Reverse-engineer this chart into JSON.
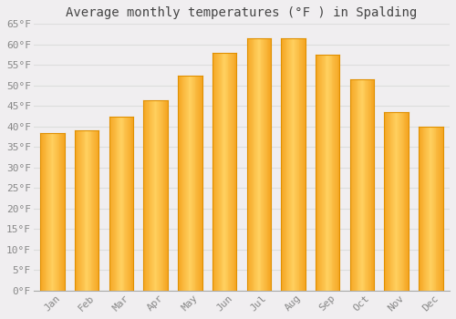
{
  "title": "Average monthly temperatures (°F ) in Spalding",
  "months": [
    "Jan",
    "Feb",
    "Mar",
    "Apr",
    "May",
    "Jun",
    "Jul",
    "Aug",
    "Sep",
    "Oct",
    "Nov",
    "Dec"
  ],
  "values": [
    38.5,
    39.0,
    42.5,
    46.5,
    52.5,
    58.0,
    61.5,
    61.5,
    57.5,
    51.5,
    43.5,
    40.0
  ],
  "bar_color_left": "#F5A623",
  "bar_color_center": "#FFD060",
  "bar_color_right": "#F5A623",
  "background_color": "#F0EEF0",
  "plot_bg_color": "#F0EEF0",
  "grid_color": "#DDDDDD",
  "ylim": [
    0,
    65
  ],
  "yticks": [
    0,
    5,
    10,
    15,
    20,
    25,
    30,
    35,
    40,
    45,
    50,
    55,
    60,
    65
  ],
  "title_fontsize": 10,
  "tick_fontsize": 8,
  "tick_label_color": "#888888",
  "bar_width": 0.7,
  "figsize": [
    5.0,
    3.5
  ],
  "dpi": 100
}
